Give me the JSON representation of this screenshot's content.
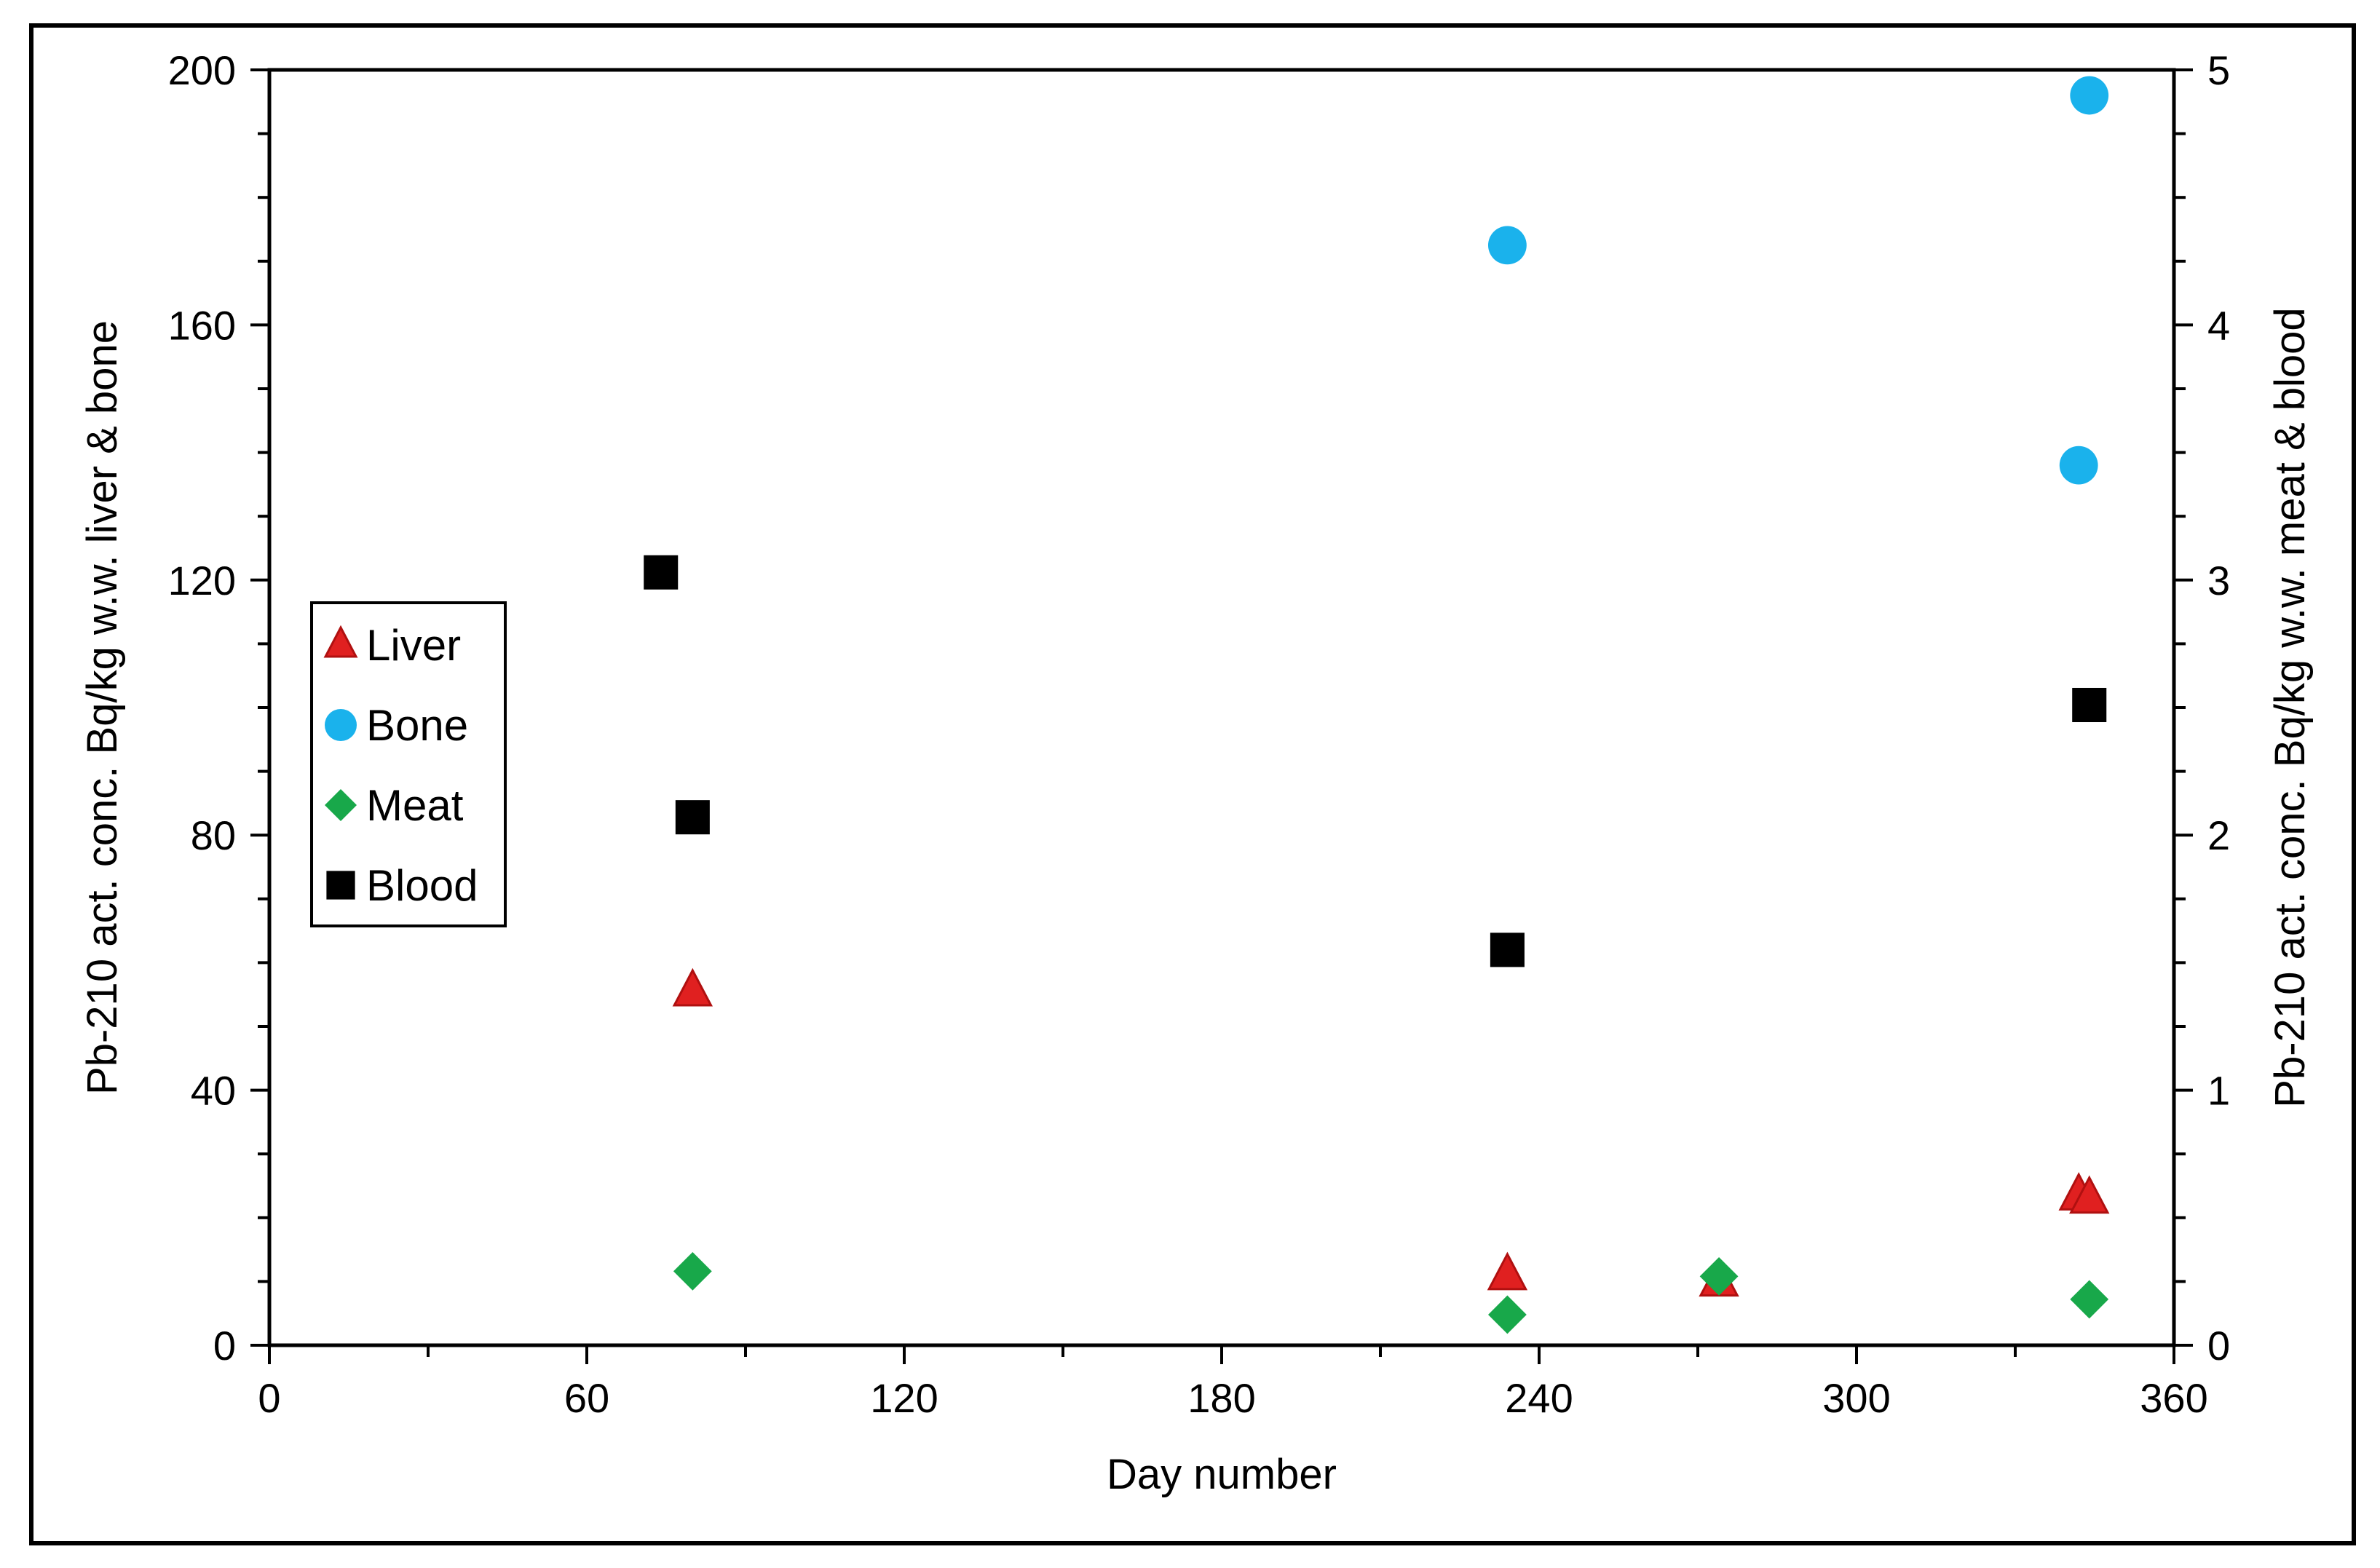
{
  "chart_data": {
    "type": "scatter",
    "xlabel": "Day number",
    "ylabel_left": "Pb-210 act. conc. Bq/kg w.w. liver & bone",
    "ylabel_right": "Pb-210 act. conc. Bq/kg w.w. meat & blood",
    "xlim": [
      0,
      360
    ],
    "ylim_left": [
      0,
      200
    ],
    "ylim_right": [
      0,
      5
    ],
    "x_ticks": [
      "0",
      "60",
      "120",
      "180",
      "240",
      "300",
      "360"
    ],
    "y_left_ticks": [
      "0",
      "40",
      "80",
      "120",
      "160",
      "200"
    ],
    "y_right_ticks": [
      "0",
      "1",
      "2",
      "3",
      "4",
      "5"
    ],
    "grid": false,
    "legend": "left",
    "series": [
      {
        "name": "Liver",
        "axis": "left",
        "marker": "triangle",
        "color": "#e02020",
        "points": [
          [
            80,
            55.5
          ],
          [
            234,
            11
          ],
          [
            274,
            10
          ],
          [
            342,
            23.5
          ],
          [
            344,
            23
          ]
        ]
      },
      {
        "name": "Bone",
        "axis": "left",
        "marker": "circle",
        "color": "#1ab2ec",
        "points": [
          [
            234,
            172.5
          ],
          [
            342,
            138
          ],
          [
            344,
            196
          ]
        ]
      },
      {
        "name": "Meat",
        "axis": "right",
        "marker": "diamond",
        "color": "#18a84a",
        "points": [
          [
            80,
            0.29
          ],
          [
            234,
            0.12
          ],
          [
            274,
            0.27
          ],
          [
            344,
            0.18
          ]
        ]
      },
      {
        "name": "Blood",
        "axis": "right",
        "marker": "square",
        "color": "#000000",
        "points": [
          [
            74,
            3.03
          ],
          [
            80,
            2.07
          ],
          [
            234,
            1.55
          ],
          [
            344,
            2.51
          ]
        ]
      }
    ]
  }
}
